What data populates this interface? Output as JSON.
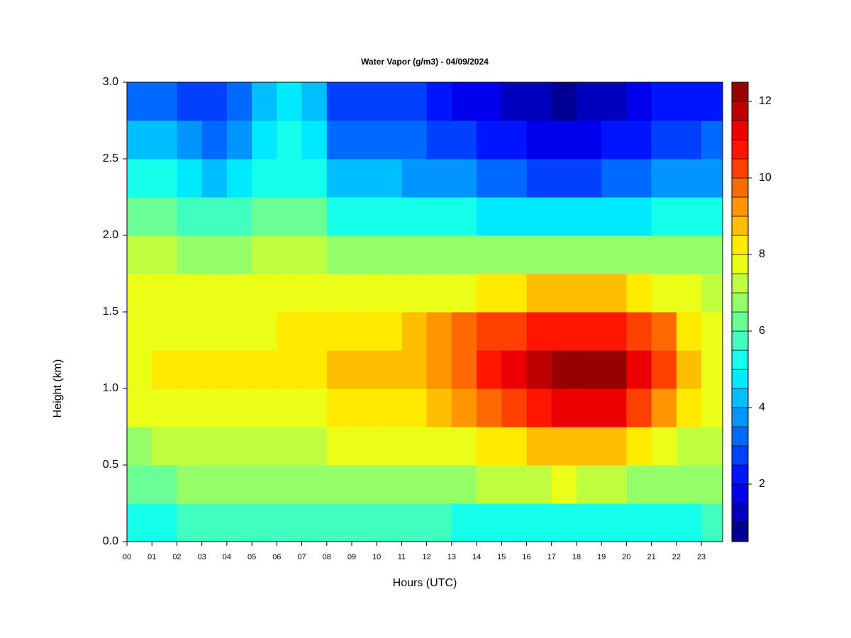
{
  "chart_data": {
    "type": "heatmap",
    "title": "Water Vapor (g/m3) - 04/09/2024",
    "xlabel": "Hours (UTC)",
    "ylabel": "Height (km)",
    "x": [
      0,
      1,
      2,
      3,
      4,
      5,
      6,
      7,
      8,
      9,
      10,
      11,
      12,
      13,
      14,
      15,
      16,
      17,
      18,
      19,
      20,
      21,
      22,
      23
    ],
    "y": [
      0,
      0.25,
      0.5,
      0.75,
      1,
      1.25,
      1.5,
      1.75,
      2,
      2.25,
      2.5,
      2.75
    ],
    "z": [
      [
        5,
        5,
        5.5,
        5.5,
        5.5,
        5.5,
        5.5,
        5.5,
        5.5,
        5.5,
        5.5,
        5.5,
        5.5,
        5,
        5,
        5,
        5,
        5,
        5,
        5,
        5,
        5,
        5,
        5.5
      ],
      [
        6,
        6,
        6.5,
        6.5,
        6.5,
        6.5,
        6.5,
        6.5,
        6.5,
        6.5,
        6.5,
        6.5,
        6.5,
        6.5,
        7,
        7,
        7,
        7.5,
        7,
        7,
        6.5,
        6.5,
        6.5,
        6.5
      ],
      [
        6.5,
        7,
        7,
        7,
        7,
        7,
        7,
        7,
        7.5,
        7.5,
        7.5,
        7.5,
        7.5,
        7.5,
        8,
        8,
        8.5,
        8.5,
        8.5,
        8.5,
        8,
        7.5,
        7,
        7
      ],
      [
        7.5,
        7.5,
        7.5,
        7.5,
        7.5,
        7.5,
        7.5,
        7.5,
        8,
        8,
        8,
        8,
        8.5,
        9,
        9.5,
        10,
        10.5,
        11,
        11,
        11,
        10,
        9,
        8,
        7.5
      ],
      [
        7.5,
        8,
        8,
        8,
        8,
        8,
        8,
        8,
        8.5,
        8.5,
        8.5,
        8.5,
        9,
        9.5,
        10.5,
        11,
        11.5,
        12,
        12,
        12,
        11,
        10,
        8.5,
        7.5
      ],
      [
        7.5,
        7.5,
        7.5,
        7.5,
        7.5,
        7.5,
        8,
        8,
        8,
        8,
        8,
        8.5,
        9,
        9.5,
        10,
        10,
        10.5,
        10.5,
        10.5,
        10.5,
        10,
        9.5,
        8,
        7.5
      ],
      [
        7.5,
        7.5,
        7.5,
        7.5,
        7.5,
        7.5,
        7.5,
        7.5,
        7.5,
        7.5,
        7.5,
        7.5,
        7.5,
        7.5,
        8,
        8,
        8.5,
        8.5,
        8.5,
        8.5,
        8,
        7.5,
        7.5,
        7
      ],
      [
        7,
        7,
        6.5,
        6.5,
        6.5,
        7,
        7,
        7,
        6.5,
        6.5,
        6.5,
        6.5,
        6.5,
        6.5,
        6.5,
        6.5,
        6.5,
        6.5,
        6.5,
        6.5,
        6.5,
        6.5,
        6.5,
        6.5
      ],
      [
        6,
        6,
        5.5,
        5.5,
        5.5,
        6,
        6,
        6,
        5,
        5,
        5,
        5,
        5,
        5,
        4.5,
        4.5,
        4.5,
        4.5,
        4.5,
        4.5,
        4.5,
        5,
        5,
        5
      ],
      [
        5,
        5,
        4.5,
        4,
        4.5,
        5,
        5,
        5,
        4,
        4,
        4,
        3.5,
        3.5,
        3.5,
        3,
        3,
        2.5,
        2.5,
        2.5,
        3,
        3,
        3.5,
        3.5,
        3.5
      ],
      [
        4,
        4,
        3.5,
        3,
        3.5,
        4.5,
        5,
        4.5,
        3,
        3,
        3,
        3,
        2.5,
        2.5,
        2,
        2,
        1.5,
        1.5,
        1.5,
        2,
        2,
        2.5,
        2.5,
        3
      ],
      [
        3,
        3,
        2.5,
        2.5,
        3,
        4,
        4.5,
        4,
        2.5,
        2.5,
        2.5,
        2.5,
        2,
        1.5,
        1.5,
        1,
        1,
        0.8,
        1,
        1,
        1.5,
        2,
        2,
        2
      ]
    ],
    "xlim": [
      0,
      23.85
    ],
    "ylim": [
      0,
      3
    ],
    "xticks": [
      {
        "value": 0,
        "label": "00"
      },
      {
        "value": 1,
        "label": "01"
      },
      {
        "value": 2,
        "label": "02"
      },
      {
        "value": 3,
        "label": "03"
      },
      {
        "value": 4,
        "label": "04"
      },
      {
        "value": 5,
        "label": "05"
      },
      {
        "value": 6,
        "label": "06"
      },
      {
        "value": 7,
        "label": "07"
      },
      {
        "value": 8,
        "label": "08"
      },
      {
        "value": 9,
        "label": "09"
      },
      10,
      11,
      12,
      13,
      14,
      15,
      16,
      17,
      18,
      19,
      20,
      21,
      22,
      23
    ],
    "yticks": [
      {
        "value": 0,
        "label": "0.0"
      },
      0.5,
      {
        "value": 1,
        "label": "1.0"
      },
      1.5,
      {
        "value": 2,
        "label": "2.0"
      },
      2.5,
      {
        "value": 3,
        "label": "3.0"
      }
    ],
    "colormap": "jet",
    "clim": [
      0.5,
      12.5
    ],
    "nlevels": 24,
    "cticks": [
      2,
      4,
      6,
      8,
      10,
      12
    ]
  }
}
